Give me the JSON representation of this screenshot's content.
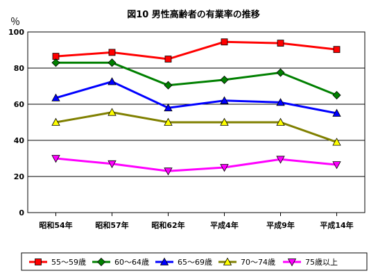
{
  "chart_data": {
    "type": "line",
    "title": "図10 男性高齢者の有業率の推移",
    "ylabel": "％",
    "ylim": [
      0,
      100
    ],
    "yticks": [
      0,
      20,
      40,
      60,
      80,
      100
    ],
    "categories": [
      "昭和54年",
      "昭和57年",
      "昭和62年",
      "平成4年",
      "平成9年",
      "平成14年"
    ],
    "grid": "horizontal",
    "legend_position": "bottom",
    "series": [
      {
        "name": "55～59歳",
        "color": "#ff0000",
        "marker": "square",
        "values": [
          86.5,
          88.7,
          85.0,
          94.5,
          93.8,
          90.3
        ]
      },
      {
        "name": "60～64歳",
        "color": "#008000",
        "marker": "diamond",
        "values": [
          83.0,
          83.0,
          70.5,
          73.5,
          77.5,
          65.0
        ]
      },
      {
        "name": "65～69歳",
        "color": "#0000ff",
        "marker": "triangle-up",
        "values": [
          63.5,
          72.5,
          58.0,
          62.0,
          61.0,
          55.0
        ]
      },
      {
        "name": "70～74歳",
        "color": "#808000",
        "marker": "triangle-up-yellow",
        "values": [
          50.0,
          55.5,
          50.0,
          50.0,
          50.0,
          39.0
        ]
      },
      {
        "name": "75歳以上",
        "color": "#ff00ff",
        "marker": "triangle-down",
        "values": [
          30.0,
          27.0,
          23.0,
          25.0,
          29.5,
          26.5
        ]
      }
    ]
  }
}
